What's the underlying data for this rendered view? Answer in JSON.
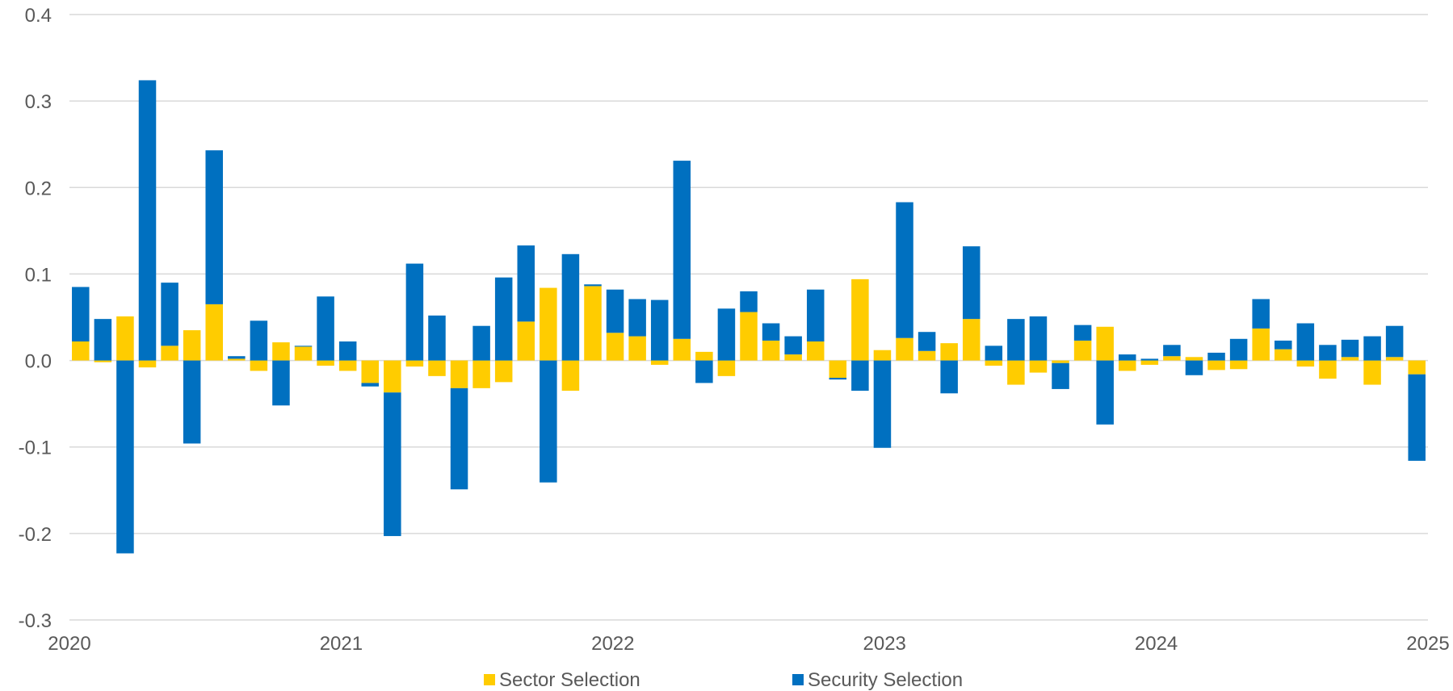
{
  "chart_data": {
    "type": "bar",
    "stacked": true,
    "title": "",
    "xlabel": "",
    "ylabel": "",
    "ylim": [
      -0.3,
      0.4
    ],
    "y_ticks": [
      "0.4",
      "0.3",
      "0.2",
      "0.1",
      "0.0",
      "-0.1",
      "-0.2",
      "-0.3"
    ],
    "x_ticks": [
      "2020",
      "2021",
      "2022",
      "2023",
      "2024",
      "2025"
    ],
    "grid": true,
    "legend_position": "bottom",
    "colors": {
      "sector": "#FFCC00",
      "security": "#0070C0",
      "grid": "#D9D9D9"
    },
    "series": [
      {
        "name": "Sector Selection",
        "values": [
          0.022,
          -0.002,
          0.051,
          -0.008,
          0.017,
          0.035,
          0.065,
          0.002,
          -0.012,
          0.021,
          0.016,
          -0.006,
          -0.012,
          -0.026,
          -0.037,
          -0.007,
          -0.018,
          -0.032,
          -0.032,
          -0.025,
          0.045,
          0.084,
          -0.035,
          0.086,
          0.032,
          0.028,
          -0.005,
          0.025,
          0.01,
          -0.018,
          0.056,
          0.023,
          0.007,
          0.022,
          -0.02,
          0.094,
          0.012,
          0.026,
          0.011,
          0.02,
          0.048,
          -0.006,
          -0.028,
          -0.014,
          -0.003,
          0.023,
          0.039,
          -0.012,
          -0.005,
          0.005,
          0.004,
          -0.011,
          -0.01,
          0.037,
          0.013,
          -0.007,
          -0.021,
          0.004,
          -0.028,
          0.004,
          -0.016
        ]
      },
      {
        "name": "Security Selection",
        "values": [
          0.063,
          0.048,
          -0.223,
          0.324,
          0.073,
          -0.096,
          0.178,
          0.003,
          0.046,
          -0.052,
          0.001,
          0.074,
          0.022,
          -0.004,
          -0.166,
          0.112,
          0.052,
          -0.117,
          0.04,
          0.096,
          0.088,
          -0.141,
          0.123,
          0.002,
          0.05,
          0.043,
          0.07,
          0.206,
          -0.026,
          0.06,
          0.024,
          0.02,
          0.021,
          0.06,
          -0.002,
          -0.035,
          -0.101,
          0.157,
          0.022,
          -0.038,
          0.084,
          0.017,
          0.048,
          0.051,
          -0.03,
          0.018,
          -0.074,
          0.007,
          0.002,
          0.013,
          -0.017,
          0.009,
          0.025,
          0.034,
          0.01,
          0.043,
          0.018,
          0.02,
          0.028,
          0.036,
          -0.1
        ]
      }
    ]
  }
}
